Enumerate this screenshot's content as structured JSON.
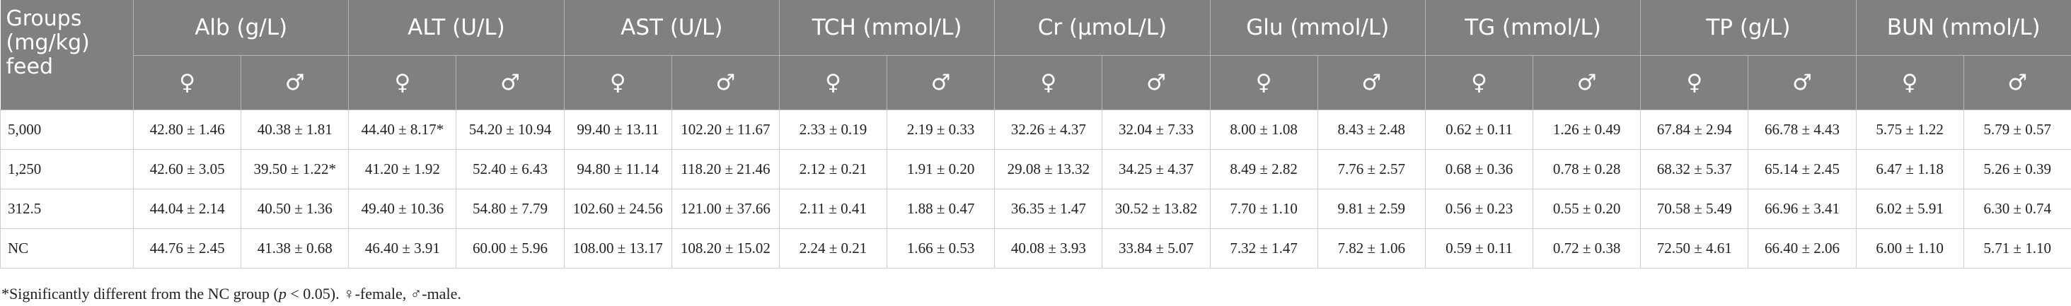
{
  "table": {
    "group_header_lines": [
      "Groups",
      "(mg/kg)",
      "feed"
    ],
    "parameters": [
      "Alb (g/L)",
      "ALT (U/L)",
      "AST (U/L)",
      "TCH (mmol/L)",
      "Cr (μmoL/L)",
      "Glu (mmol/L)",
      "TG (mmol/L)",
      "TP (g/L)",
      "BUN (mmol/L)"
    ],
    "sex_symbols": [
      "♀",
      "♂"
    ],
    "rows": [
      {
        "group": "5,000",
        "values": [
          "42.80 ± 1.46",
          "40.38 ± 1.81",
          "44.40 ± 8.17*",
          "54.20 ± 10.94",
          "99.40 ± 13.11",
          "102.20 ± 11.67",
          "2.33 ± 0.19",
          "2.19 ± 0.33",
          "32.26 ± 4.37",
          "32.04 ± 7.33",
          "8.00 ± 1.08",
          "8.43 ± 2.48",
          "0.62 ± 0.11",
          "1.26 ± 0.49",
          "67.84 ± 2.94",
          "66.78 ± 4.43",
          "5.75 ± 1.22",
          "5.79 ± 0.57"
        ]
      },
      {
        "group": "1,250",
        "values": [
          "42.60 ± 3.05",
          "39.50 ± 1.22*",
          "41.20 ± 1.92",
          "52.40 ± 6.43",
          "94.80 ± 11.14",
          "118.20 ± 21.46",
          "2.12 ± 0.21",
          "1.91 ± 0.20",
          "29.08 ± 13.32",
          "34.25 ± 4.37",
          "8.49 ± 2.82",
          "7.76 ± 2.57",
          "0.68 ± 0.36",
          "0.78 ± 0.28",
          "68.32 ± 5.37",
          "65.14 ± 2.45",
          "6.47 ± 1.18",
          "5.26 ± 0.39"
        ]
      },
      {
        "group": "312.5",
        "values": [
          "44.04 ± 2.14",
          "40.50 ± 1.36",
          "49.40 ± 10.36",
          "54.80 ± 7.79",
          "102.60 ± 24.56",
          "121.00 ± 37.66",
          "2.11 ± 0.41",
          "1.88 ± 0.47",
          "36.35 ± 1.47",
          "30.52 ± 13.82",
          "7.70 ± 1.10",
          "9.81 ± 2.59",
          "0.56 ± 0.23",
          "0.55 ± 0.20",
          "70.58 ± 5.49",
          "66.96 ± 3.41",
          "6.02 ± 5.91",
          "6.30 ± 0.74"
        ]
      },
      {
        "group": "NC",
        "values": [
          "44.76 ± 2.45",
          "41.38 ± 0.68",
          "46.40 ± 3.91",
          "60.00 ± 5.96",
          "108.00 ± 13.17",
          "108.20 ± 15.02",
          "2.24 ± 0.21",
          "1.66 ± 0.53",
          "40.08 ± 3.93",
          "33.84 ± 5.07",
          "7.32 ± 1.47",
          "7.82 ± 1.06",
          "0.59 ± 0.11",
          "0.72 ± 0.38",
          "72.50 ± 4.61",
          "66.40 ± 2.06",
          "6.00 ± 1.10",
          "5.71 ± 1.10"
        ]
      }
    ]
  },
  "footnote": {
    "part1": "*Significantly different from the NC group (",
    "p": "p",
    "part2": " < 0.05). ♀-female, ♂-male."
  }
}
